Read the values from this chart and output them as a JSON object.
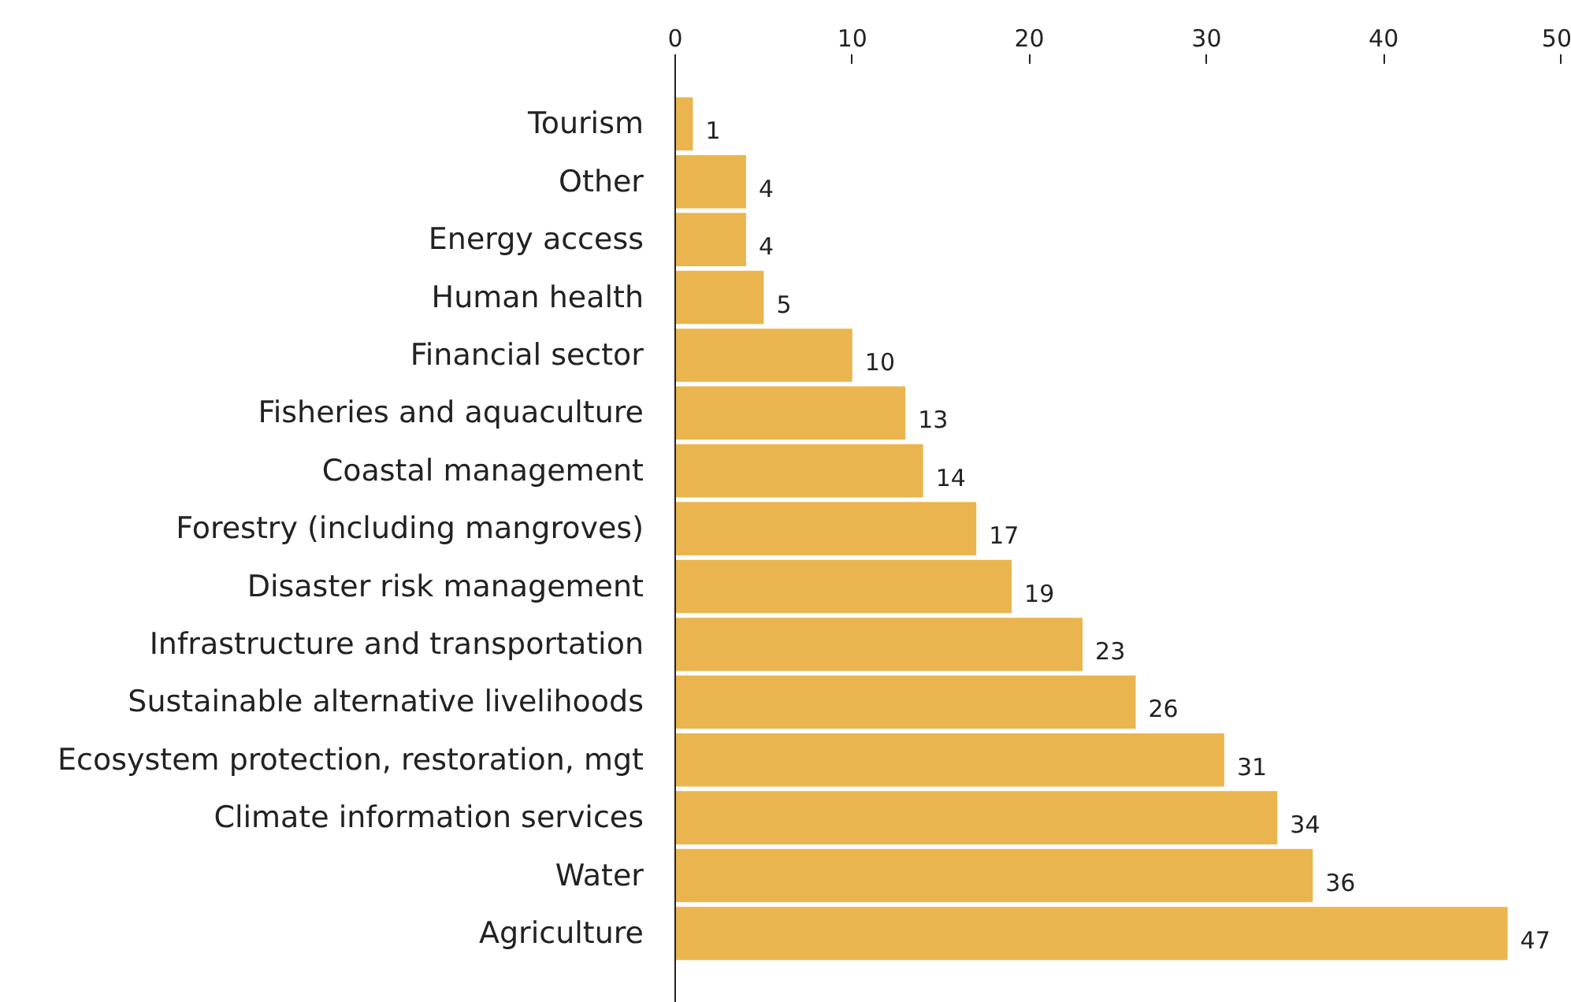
{
  "chart_data": {
    "type": "bar",
    "orientation": "horizontal",
    "categories": [
      "Tourism",
      "Other",
      "Energy access",
      "Human health",
      "Financial sector",
      "Fisheries and aquaculture",
      "Coastal management",
      "Forestry (including mangroves)",
      "Disaster risk management",
      "Infrastructure and transportation",
      "Sustainable alternative livelihoods",
      "Ecosystem protection, restoration, mgt",
      "Climate information services",
      "Water",
      "Agriculture"
    ],
    "values": [
      1,
      4,
      4,
      5,
      10,
      13,
      14,
      17,
      19,
      23,
      26,
      31,
      34,
      36,
      47
    ],
    "color": "#eab54e",
    "xlim": [
      0,
      50
    ],
    "xticks": [
      0,
      10,
      20,
      30,
      40,
      50
    ],
    "grid": false,
    "data_labels": true
  }
}
